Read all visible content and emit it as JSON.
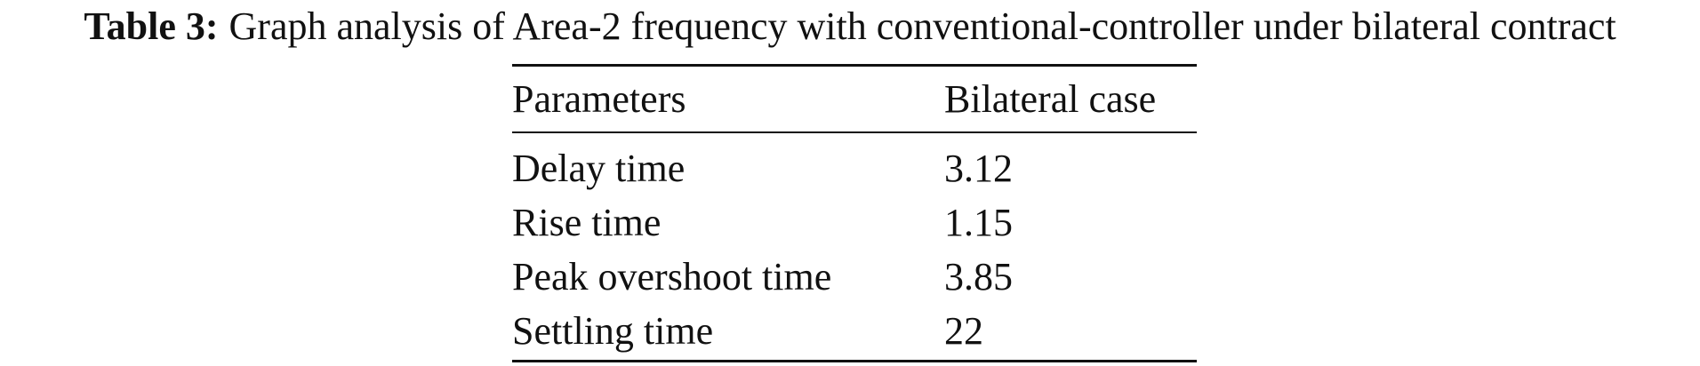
{
  "caption": {
    "label": "Table 3:",
    "text": "Graph analysis of Area-2 frequency with conventional-controller under bilateral contract"
  },
  "table": {
    "header": [
      "Parameters",
      "Bilateral case"
    ],
    "rows": [
      [
        "Delay time",
        "3.12"
      ],
      [
        "Rise time",
        "1.15"
      ],
      [
        "Peak overshoot time",
        "3.85"
      ],
      [
        "Settling time",
        "22"
      ]
    ]
  }
}
